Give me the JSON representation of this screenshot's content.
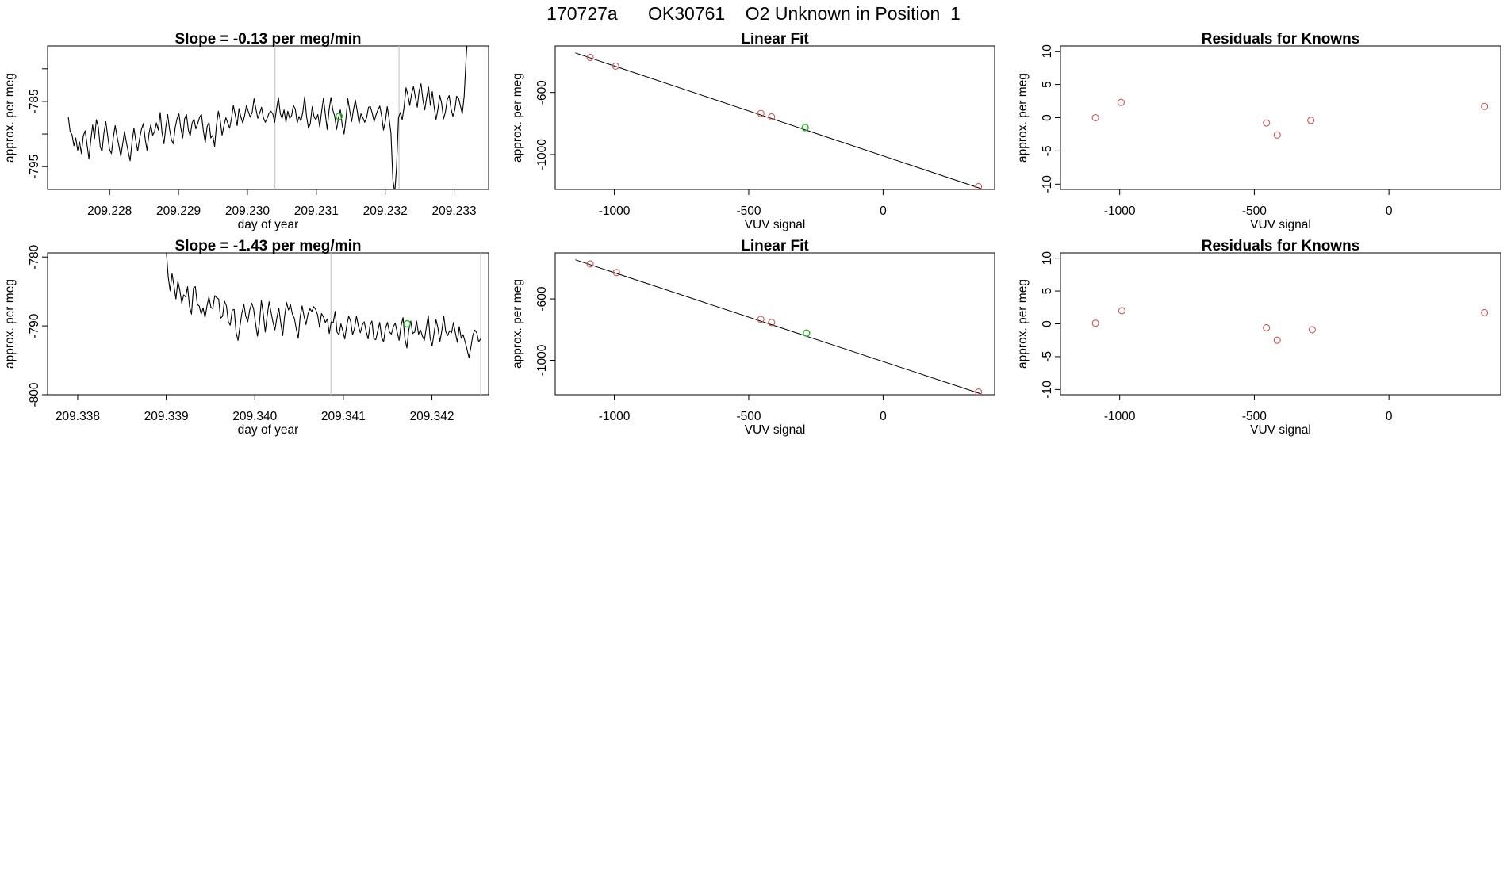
{
  "figure": {
    "title": "170727a      OK30761    O2 Unknown in Position  1",
    "known_color": "#cd5555",
    "unknown_color": "#22bb22",
    "trace_color": "#000000",
    "marker_line_color": "#c8c8c8"
  },
  "chart_data": [
    {
      "id": "drift_top",
      "type": "line",
      "title": "Slope =  -0.13  per meg/min",
      "xlabel": "day of year",
      "ylabel": "approx. per meg",
      "xlim": [
        209.2271,
        209.2335
      ],
      "ylim": [
        -798.5,
        -776.5
      ],
      "xticks": [
        209.228,
        209.229,
        209.23,
        209.231,
        209.232,
        209.233
      ],
      "xtick_labels": [
        "209.228",
        "209.229",
        "209.230",
        "209.231",
        "209.232",
        "209.233"
      ],
      "yticks": [
        -795,
        -790,
        -785,
        -780
      ],
      "ytick_labels": [
        "-795",
        "",
        "-785",
        ""
      ],
      "x_start": 209.2274,
      "x_end": 209.2332,
      "values": [
        -787.4,
        -789.6,
        -790.1,
        -791.8,
        -790.6,
        -792.5,
        -791.2,
        -793.0,
        -790.3,
        -789.5,
        -791.6,
        -793.8,
        -791.0,
        -788.6,
        -790.7,
        -787.8,
        -788.9,
        -791.9,
        -792.7,
        -789.9,
        -788.1,
        -790.2,
        -792.4,
        -793.0,
        -790.6,
        -788.7,
        -790.4,
        -791.8,
        -793.4,
        -791.5,
        -789.6,
        -791.3,
        -792.8,
        -794.1,
        -791.2,
        -789.1,
        -791.0,
        -792.6,
        -790.7,
        -789.3,
        -788.4,
        -790.8,
        -792.5,
        -790.0,
        -788.6,
        -790.2,
        -789.6,
        -788.3,
        -789.4,
        -786.7,
        -789.8,
        -791.5,
        -788.9,
        -787.0,
        -789.3,
        -790.9,
        -791.5,
        -789.0,
        -787.6,
        -786.9,
        -789.1,
        -790.6,
        -787.7,
        -787.0,
        -789.4,
        -790.3,
        -788.3,
        -787.7,
        -789.2,
        -788.4,
        -787.4,
        -787.0,
        -789.5,
        -791.3,
        -788.9,
        -788.2,
        -790.6,
        -790.2,
        -791.9,
        -788.7,
        -786.5,
        -787.9,
        -790.2,
        -788.7,
        -787.5,
        -788.3,
        -789.1,
        -787.6,
        -785.6,
        -787.1,
        -788.7,
        -786.1,
        -787.4,
        -788.3,
        -787.2,
        -785.6,
        -786.6,
        -787.4,
        -786.7,
        -784.6,
        -786.1,
        -787.6,
        -786.8,
        -785.9,
        -787.5,
        -788.2,
        -787.6,
        -786.8,
        -786.5,
        -786.9,
        -788.2,
        -786.2,
        -784.4,
        -786.9,
        -787.6,
        -786.3,
        -788.2,
        -786.5,
        -787.6,
        -787.2,
        -785.6,
        -786.2,
        -788.3,
        -787.3,
        -788.0,
        -786.6,
        -784.3,
        -787.3,
        -789.1,
        -788.4,
        -785.8,
        -787.4,
        -787.8,
        -787.0,
        -788.9,
        -786.6,
        -784.5,
        -787.0,
        -789.3,
        -786.3,
        -784.4,
        -786.3,
        -787.3,
        -789.3,
        -787.6,
        -786.3,
        -788.6,
        -790.0,
        -787.6,
        -784.6,
        -786.4,
        -788.1,
        -786.3,
        -784.8,
        -786.5,
        -788.4,
        -786.9,
        -787.5,
        -788.2,
        -787.5,
        -785.9,
        -785.8,
        -786.8,
        -788.1,
        -787.1,
        -786.3,
        -785.7,
        -787.2,
        -789.4,
        -788.0,
        -785.8,
        -787.7,
        -789.9,
        -797.0,
        -799.0,
        -795.0,
        -787.5,
        -786.7,
        -787.8,
        -785.8,
        -782.9,
        -784.0,
        -785.6,
        -783.8,
        -782.7,
        -784.4,
        -785.9,
        -783.4,
        -782.3,
        -784.8,
        -786.3,
        -784.4,
        -782.8,
        -785.6,
        -783.5,
        -785.9,
        -787.8,
        -786.2,
        -784.1,
        -785.3,
        -787.7,
        -786.6,
        -784.7,
        -784.1,
        -786.1,
        -787.3,
        -786.3,
        -784.2,
        -784.5,
        -785.7,
        -786.9,
        -784.2,
        -778.5,
        -774.0
      ],
      "vlines": [
        209.2304,
        209.2322
      ],
      "unknown_point": {
        "x": 209.23133,
        "y": -787.3
      }
    },
    {
      "id": "fit_top",
      "type": "scatter",
      "title": "Linear Fit",
      "xlabel": "VUV signal",
      "ylabel": "approx. per meg",
      "xlim": [
        -1220,
        415
      ],
      "ylim": [
        -1225,
        -300
      ],
      "xticks": [
        -1000,
        -500,
        0
      ],
      "xtick_labels": [
        "-1000",
        "-500",
        "0"
      ],
      "yticks": [
        -1000,
        -600
      ],
      "ytick_labels": [
        "-1000",
        "-600"
      ],
      "fit_line": {
        "x": [
          -1145,
          365
        ],
        "y": [
          -345,
          -1220
        ]
      },
      "knowns": [
        {
          "x": -1090,
          "y": -374
        },
        {
          "x": -995,
          "y": -430
        },
        {
          "x": -455,
          "y": -735
        },
        {
          "x": -415,
          "y": -757
        },
        {
          "x": 355,
          "y": -1207
        }
      ],
      "unknowns": [
        {
          "x": -290,
          "y": -826
        }
      ]
    },
    {
      "id": "resid_top",
      "type": "scatter",
      "title": "Residuals for Knowns",
      "xlabel": "VUV signal",
      "ylabel": "approx. per meg",
      "xlim": [
        -1220,
        415
      ],
      "ylim": [
        -10.8,
        10.8
      ],
      "xticks": [
        -1000,
        -500,
        0
      ],
      "xtick_labels": [
        "-1000",
        "-500",
        "0"
      ],
      "yticks": [
        -10,
        -5,
        0,
        5,
        10
      ],
      "ytick_labels": [
        "-10",
        "-5",
        "0",
        "5",
        "10"
      ],
      "knowns": [
        {
          "x": -1090,
          "y": 0.0
        },
        {
          "x": -995,
          "y": 2.3
        },
        {
          "x": -455,
          "y": -0.8
        },
        {
          "x": -415,
          "y": -2.6
        },
        {
          "x": -290,
          "y": -0.4
        },
        {
          "x": 355,
          "y": 1.7
        }
      ]
    },
    {
      "id": "drift_bottom",
      "type": "line",
      "title": "Slope =  -1.43  per meg/min",
      "xlabel": "day of year",
      "ylabel": "approx. per meg",
      "xlim": [
        209.33766,
        209.34264
      ],
      "ylim": [
        -800.0,
        -779.4
      ],
      "xticks": [
        209.338,
        209.339,
        209.34,
        209.341,
        209.342
      ],
      "xtick_labels": [
        "209.338",
        "209.339",
        "209.340",
        "209.341",
        "209.342"
      ],
      "yticks": [
        -800,
        -790,
        -780
      ],
      "ytick_labels": [
        "-800",
        "-790",
        "-780"
      ],
      "x_start": 209.339,
      "x_end": 209.34255,
      "values": [
        -779.0,
        -782.9,
        -784.9,
        -782.4,
        -784.2,
        -786.1,
        -783.5,
        -784.8,
        -786.7,
        -785.5,
        -785.8,
        -784.3,
        -787.2,
        -788.3,
        -784.5,
        -784.3,
        -786.9,
        -787.1,
        -788.3,
        -787.4,
        -788.8,
        -787.1,
        -785.8,
        -787.3,
        -787.5,
        -785.6,
        -785.9,
        -786.1,
        -788.9,
        -788.6,
        -786.4,
        -787.1,
        -789.4,
        -789.9,
        -787.7,
        -787.6,
        -791.0,
        -792.1,
        -790.0,
        -788.1,
        -786.9,
        -788.6,
        -789.4,
        -787.7,
        -786.7,
        -787.5,
        -789.6,
        -791.5,
        -789.7,
        -786.3,
        -788.2,
        -790.9,
        -788.6,
        -786.5,
        -788.0,
        -789.5,
        -790.6,
        -788.8,
        -787.4,
        -789.6,
        -791.4,
        -788.6,
        -786.6,
        -787.7,
        -786.9,
        -788.3,
        -788.9,
        -790.4,
        -791.8,
        -788.7,
        -787.1,
        -788.6,
        -789.8,
        -788.3,
        -787.5,
        -787.9,
        -787.2,
        -787.6,
        -788.4,
        -790.2,
        -788.2,
        -788.7,
        -789.5,
        -789.0,
        -791.1,
        -789.4,
        -789.6,
        -787.9,
        -790.9,
        -791.3,
        -789.7,
        -790.7,
        -791.9,
        -790.0,
        -788.6,
        -789.3,
        -791.3,
        -790.4,
        -788.6,
        -790.0,
        -791.0,
        -789.9,
        -789.4,
        -790.8,
        -791.9,
        -789.9,
        -789.3,
        -791.9,
        -792.0,
        -790.7,
        -789.5,
        -791.7,
        -792.3,
        -790.3,
        -789.5,
        -790.9,
        -791.2,
        -790.1,
        -789.6,
        -790.9,
        -792.1,
        -790.0,
        -788.8,
        -791.9,
        -793.2,
        -790.6,
        -789.3,
        -791.1,
        -790.9,
        -789.3,
        -791.2,
        -790.6,
        -791.5,
        -792.1,
        -790.3,
        -788.5,
        -791.8,
        -792.9,
        -791.1,
        -789.1,
        -790.3,
        -792.3,
        -790.7,
        -788.6,
        -790.8,
        -791.4,
        -790.7,
        -791.0,
        -789.5,
        -791.0,
        -792.4,
        -790.1,
        -791.8,
        -791.3,
        -792.3,
        -793.4,
        -794.6,
        -793.1,
        -791.3,
        -790.6,
        -791.0,
        -792.3,
        -791.9
      ],
      "vlines": [
        209.34086,
        209.34255
      ],
      "unknown_point": {
        "x": 209.34172,
        "y": -789.7
      }
    },
    {
      "id": "fit_bottom",
      "type": "scatter",
      "title": "Linear Fit",
      "xlabel": "VUV signal",
      "ylabel": "approx. per meg",
      "xlim": [
        -1220,
        415
      ],
      "ylim": [
        -1225,
        -300
      ],
      "xticks": [
        -1000,
        -500,
        0
      ],
      "xtick_labels": [
        "-1000",
        "-500",
        "0"
      ],
      "yticks": [
        -1000,
        -600
      ],
      "ytick_labels": [
        "-1000",
        "-600"
      ],
      "fit_line": {
        "x": [
          -1145,
          365
        ],
        "y": [
          -345,
          -1220
        ]
      },
      "knowns": [
        {
          "x": -1090,
          "y": -372
        },
        {
          "x": -992,
          "y": -428
        },
        {
          "x": -455,
          "y": -733
        },
        {
          "x": -415,
          "y": -754
        },
        {
          "x": 355,
          "y": -1207
        }
      ],
      "unknowns": [
        {
          "x": -285,
          "y": -823
        }
      ]
    },
    {
      "id": "resid_bottom",
      "type": "scatter",
      "title": "Residuals for Knowns",
      "xlabel": "VUV signal",
      "ylabel": "approx. per meg",
      "xlim": [
        -1220,
        415
      ],
      "ylim": [
        -10.8,
        10.8
      ],
      "xticks": [
        -1000,
        -500,
        0
      ],
      "xtick_labels": [
        "-1000",
        "-500",
        "0"
      ],
      "yticks": [
        -10,
        -5,
        0,
        5,
        10
      ],
      "ytick_labels": [
        "-10",
        "-5",
        "0",
        "5",
        "10"
      ],
      "knowns": [
        {
          "x": -1090,
          "y": 0.1
        },
        {
          "x": -992,
          "y": 2.0
        },
        {
          "x": -455,
          "y": -0.6
        },
        {
          "x": -415,
          "y": -2.5
        },
        {
          "x": -285,
          "y": -0.9
        },
        {
          "x": 355,
          "y": 1.7
        }
      ]
    }
  ]
}
